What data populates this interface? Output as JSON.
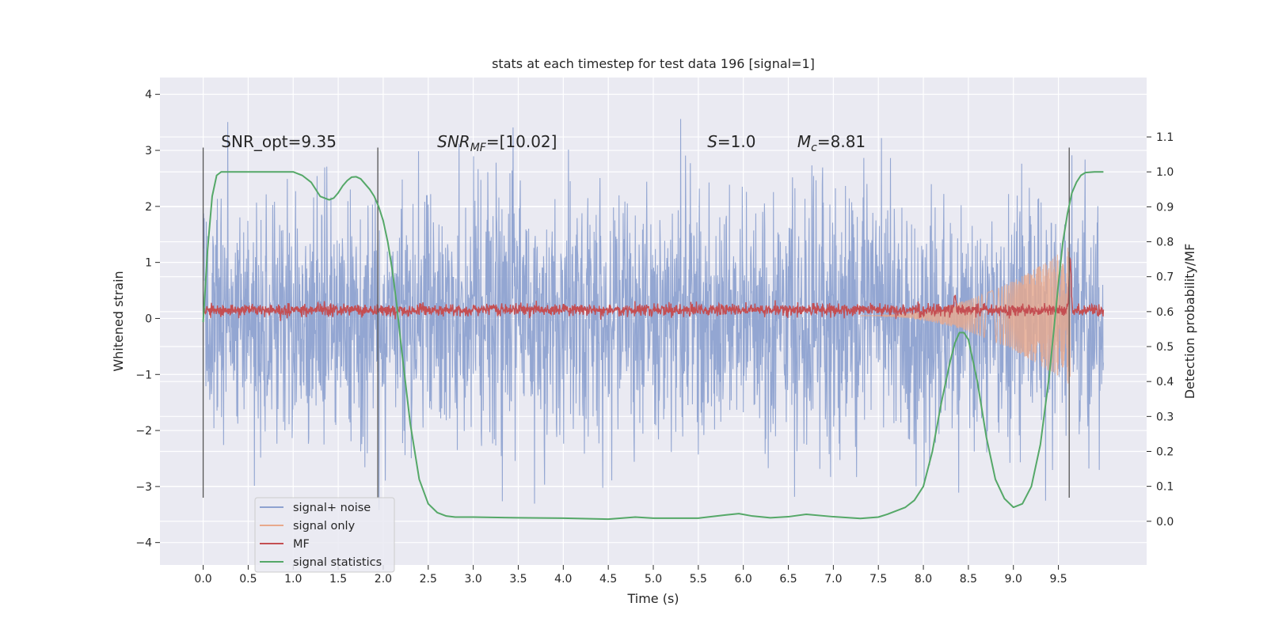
{
  "chart_data": {
    "type": "line",
    "title": "stats at each timestep for test data 196 [signal=1]",
    "xlabel": "Time (s)",
    "ylabel": "Whitened strain",
    "y2label": "Detection probability/MF",
    "xlim": [
      -0.48,
      10.48
    ],
    "ylim": [
      -4.4,
      4.3
    ],
    "y2lim": [
      -0.125,
      1.27
    ],
    "xticks": [
      0.0,
      0.5,
      1.0,
      1.5,
      2.0,
      2.5,
      3.0,
      3.5,
      4.0,
      4.5,
      5.0,
      5.5,
      6.0,
      6.5,
      7.0,
      7.5,
      8.0,
      8.5,
      9.0,
      9.5
    ],
    "xtick_labels": [
      "0.0",
      "0.5",
      "1.0",
      "1.5",
      "2.0",
      "2.5",
      "3.0",
      "3.5",
      "4.0",
      "4.5",
      "5.0",
      "5.5",
      "6.0",
      "6.5",
      "7.0",
      "7.5",
      "8.0",
      "8.5",
      "9.0",
      "9.5"
    ],
    "yticks": [
      -4,
      -3,
      -2,
      -1,
      0,
      1,
      2,
      3,
      4
    ],
    "ytick_labels": [
      "−4",
      "−3",
      "−2",
      "−1",
      "0",
      "1",
      "2",
      "3",
      "4"
    ],
    "y2ticks": [
      0.0,
      0.1,
      0.2,
      0.3,
      0.4,
      0.5,
      0.6,
      0.7,
      0.8,
      0.9,
      1.0,
      1.1
    ],
    "y2tick_labels": [
      "0.0",
      "0.1",
      "0.2",
      "0.3",
      "0.4",
      "0.5",
      "0.6",
      "0.7",
      "0.8",
      "0.9",
      "1.0",
      "1.1"
    ],
    "grid": true,
    "legend_placement": "lower-left",
    "annotations": [
      {
        "name": "snr-opt-annotation",
        "prefix": "SNR_opt=9.35",
        "math": "",
        "sub": "",
        "suffix": "",
        "x": 0.2,
        "y": 3.0
      },
      {
        "name": "snr-mf-annotation",
        "prefix": "",
        "math": "SNR",
        "sub": "MF",
        "suffix": "=[10.02]",
        "x": 2.6,
        "y": 3.0
      },
      {
        "name": "s-annotation",
        "prefix": "",
        "math": "S",
        "sub": "",
        "suffix": "=1.0",
        "x": 5.6,
        "y": 3.0
      },
      {
        "name": "mc-annotation",
        "prefix": "",
        "math": "M",
        "sub": "c",
        "suffix": "=8.81",
        "x": 6.6,
        "y": 3.0
      }
    ],
    "vlines": [
      0.0,
      1.94,
      9.62
    ],
    "vline_range": [
      -3.2,
      3.05
    ],
    "series": [
      {
        "name": "signal+ noise",
        "color": "#8ea2d0",
        "axis": "left",
        "style": "noise",
        "t_range": [
          0.0,
          10.0
        ],
        "noise_sigma": 1.1,
        "y_clip": [
          -3.7,
          3.9
        ]
      },
      {
        "name": "signal only",
        "color": "#e8a98c",
        "axis": "left",
        "style": "chirp-envelope",
        "t_range": [
          7.3,
          9.63
        ],
        "amplitude_start": 0.0,
        "amplitude_end": 1.25
      },
      {
        "name": "MF",
        "color": "#c44e52",
        "axis": "left",
        "style": "band",
        "t_range": [
          0.0,
          10.0
        ],
        "baseline": 0.15,
        "jitter": 0.1,
        "peaks": [
          {
            "x": 8.35,
            "y": 0.42
          },
          {
            "x": 9.63,
            "y": 1.05
          }
        ]
      },
      {
        "name": "signal statistics",
        "color": "#55a868",
        "axis": "right",
        "style": "curve",
        "x": [
          0.0,
          0.05,
          0.1,
          0.15,
          0.2,
          0.3,
          0.4,
          0.5,
          0.6,
          0.7,
          0.8,
          0.9,
          1.0,
          1.1,
          1.2,
          1.3,
          1.4,
          1.45,
          1.5,
          1.55,
          1.6,
          1.65,
          1.7,
          1.75,
          1.8,
          1.85,
          1.9,
          1.95,
          2.0,
          2.05,
          2.1,
          2.15,
          2.2,
          2.3,
          2.4,
          2.5,
          2.6,
          2.7,
          2.8,
          3.0,
          3.5,
          4.0,
          4.5,
          4.8,
          5.0,
          5.5,
          5.8,
          5.95,
          6.1,
          6.3,
          6.5,
          6.7,
          7.0,
          7.3,
          7.5,
          7.6,
          7.7,
          7.8,
          7.9,
          8.0,
          8.1,
          8.2,
          8.3,
          8.35,
          8.4,
          8.45,
          8.5,
          8.6,
          8.7,
          8.8,
          8.9,
          9.0,
          9.1,
          9.2,
          9.3,
          9.4,
          9.5,
          9.55,
          9.6,
          9.65,
          9.7,
          9.75,
          9.8,
          9.9,
          10.0
        ],
        "y": [
          0.57,
          0.78,
          0.93,
          0.99,
          1.0,
          1.0,
          1.0,
          1.0,
          1.0,
          1.0,
          1.0,
          1.0,
          1.0,
          0.99,
          0.97,
          0.93,
          0.92,
          0.925,
          0.94,
          0.96,
          0.975,
          0.985,
          0.986,
          0.98,
          0.965,
          0.95,
          0.93,
          0.9,
          0.86,
          0.8,
          0.72,
          0.62,
          0.5,
          0.28,
          0.12,
          0.05,
          0.025,
          0.015,
          0.012,
          0.012,
          0.01,
          0.009,
          0.006,
          0.012,
          0.009,
          0.009,
          0.018,
          0.022,
          0.015,
          0.01,
          0.013,
          0.02,
          0.013,
          0.008,
          0.012,
          0.02,
          0.03,
          0.04,
          0.06,
          0.1,
          0.2,
          0.34,
          0.46,
          0.51,
          0.54,
          0.54,
          0.52,
          0.4,
          0.24,
          0.12,
          0.065,
          0.04,
          0.05,
          0.1,
          0.22,
          0.42,
          0.68,
          0.8,
          0.88,
          0.94,
          0.97,
          0.99,
          0.998,
          1.0,
          1.0
        ]
      }
    ]
  }
}
